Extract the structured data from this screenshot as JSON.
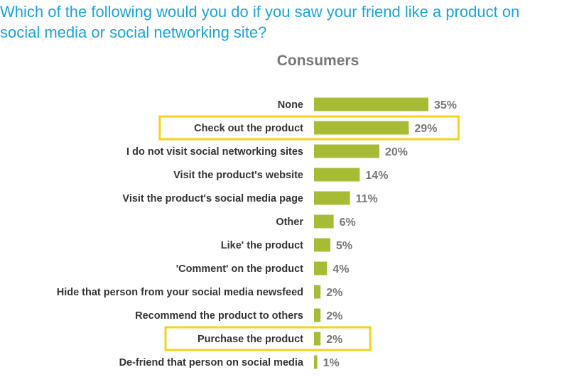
{
  "question": {
    "text": "Which of the following would you do if you saw your friend like a product on\nsocial media or social networking site?"
  },
  "colors": {
    "question": "#1aa3d9",
    "title": "#777777",
    "bar": "#a8bb35",
    "label": "#333333",
    "value": "#777777",
    "highlight": "#f5d31c"
  },
  "chart_data": {
    "type": "bar",
    "orientation": "horizontal",
    "title": "Consumers",
    "unit": "%",
    "xlabel": "",
    "ylabel": "",
    "xlim": [
      0,
      35
    ],
    "grid": false,
    "legend": "none",
    "categories": [
      "None",
      "Check out the product",
      "I do not visit social networking sites",
      "Visit the product's website",
      "Visit the product's social media page",
      "Other",
      "Like' the product",
      "'Comment' on the product",
      "Hide that person from your social media newsfeed",
      "Recommend the product to others",
      "Purchase the product",
      "De-friend that person on social media"
    ],
    "values": [
      35,
      29,
      20,
      14,
      11,
      6,
      5,
      4,
      2,
      2,
      2,
      1
    ],
    "value_labels": [
      "35%",
      "29%",
      "20%",
      "14%",
      "11%",
      "6%",
      "5%",
      "4%",
      "2%",
      "2%",
      "2%",
      "1%"
    ],
    "highlighted": [
      "Check out the product",
      "Purchase the product"
    ]
  }
}
